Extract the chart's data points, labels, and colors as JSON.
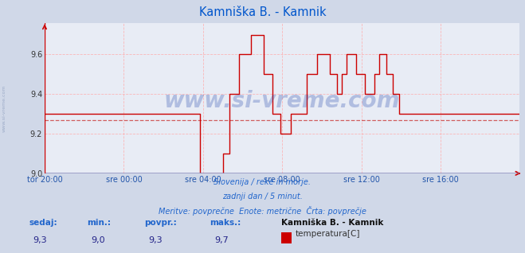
{
  "title": "Kamniška B. - Kamnik",
  "title_color": "#0055cc",
  "bg_color": "#d0d8e8",
  "plot_bg_color": "#e8ecf5",
  "grid_color": "#ffaaaa",
  "line_color": "#cc0000",
  "avg_line_color": "#cc4444",
  "avg_value": 9.27,
  "ylim": [
    9.0,
    9.76
  ],
  "yticks": [
    9.0,
    9.2,
    9.4,
    9.6
  ],
  "xlabel_color": "#2255aa",
  "watermark_text": "www.si-vreme.com",
  "watermark_color": "#2244aa",
  "watermark_alpha": 0.28,
  "footer_line1": "Slovenija / reke in morje.",
  "footer_line2": "zadnji dan / 5 minut.",
  "footer_line3": "Meritve: povprečne  Enote: metrične  Črta: povprečje",
  "footer_color": "#2266cc",
  "legend_title": "Kamniška B. - Kamnik",
  "legend_label": "temperatura[C]",
  "legend_color": "#cc0000",
  "stats_labels": [
    "sedaj:",
    "min.:",
    "povpr.:",
    "maks.:"
  ],
  "stats_values": [
    "9,3",
    "9,0",
    "9,3",
    "9,7"
  ],
  "stats_color": "#2266cc",
  "stats_value_color": "#222288",
  "xtick_labels": [
    "tor 20:00",
    "sre 00:00",
    "sre 04:00",
    "sre 08:00",
    "sre 12:00",
    "sre 16:00"
  ],
  "total_points": 289,
  "temperature_data": [
    9.3,
    9.3,
    9.3,
    9.3,
    9.3,
    9.3,
    9.3,
    9.3,
    9.3,
    9.3,
    9.3,
    9.3,
    9.3,
    9.3,
    9.3,
    9.3,
    9.3,
    9.3,
    9.3,
    9.3,
    9.3,
    9.3,
    9.3,
    9.3,
    9.3,
    9.3,
    9.3,
    9.3,
    9.3,
    9.3,
    9.3,
    9.3,
    9.3,
    9.3,
    9.3,
    9.3,
    9.3,
    9.3,
    9.3,
    9.3,
    9.3,
    9.3,
    9.3,
    9.3,
    9.3,
    9.3,
    9.3,
    9.3,
    9.3,
    9.3,
    9.3,
    9.3,
    9.3,
    9.3,
    9.3,
    9.3,
    9.3,
    9.3,
    9.3,
    9.3,
    9.3,
    9.3,
    9.3,
    9.3,
    9.3,
    9.3,
    9.3,
    9.3,
    9.3,
    9.3,
    9.3,
    9.3,
    9.3,
    9.3,
    9.3,
    9.3,
    9.3,
    9.3,
    9.3,
    9.3,
    9.3,
    9.3,
    9.3,
    9.3,
    9.3,
    9.3,
    9.3,
    9.3,
    9.3,
    9.3,
    9.3,
    9.3,
    9.3,
    9.3,
    9.0,
    9.0,
    9.0,
    9.0,
    9.0,
    9.0,
    9.0,
    9.0,
    9.0,
    9.0,
    9.0,
    9.0,
    9.0,
    9.0,
    9.1,
    9.1,
    9.1,
    9.1,
    9.4,
    9.4,
    9.4,
    9.4,
    9.4,
    9.4,
    9.6,
    9.6,
    9.6,
    9.6,
    9.6,
    9.6,
    9.6,
    9.7,
    9.7,
    9.7,
    9.7,
    9.7,
    9.7,
    9.7,
    9.7,
    9.5,
    9.5,
    9.5,
    9.5,
    9.5,
    9.3,
    9.3,
    9.3,
    9.3,
    9.3,
    9.2,
    9.2,
    9.2,
    9.2,
    9.2,
    9.2,
    9.3,
    9.3,
    9.3,
    9.3,
    9.3,
    9.3,
    9.3,
    9.3,
    9.3,
    9.3,
    9.5,
    9.5,
    9.5,
    9.5,
    9.5,
    9.5,
    9.6,
    9.6,
    9.6,
    9.6,
    9.6,
    9.6,
    9.6,
    9.6,
    9.5,
    9.5,
    9.5,
    9.5,
    9.4,
    9.4,
    9.4,
    9.5,
    9.5,
    9.5,
    9.6,
    9.6,
    9.6,
    9.6,
    9.6,
    9.6,
    9.5,
    9.5,
    9.5,
    9.5,
    9.5,
    9.4,
    9.4,
    9.4,
    9.4,
    9.4,
    9.4,
    9.5,
    9.5,
    9.5,
    9.6,
    9.6,
    9.6,
    9.6,
    9.5,
    9.5,
    9.5,
    9.5,
    9.4,
    9.4,
    9.4,
    9.4,
    9.3,
    9.3,
    9.3,
    9.3,
    9.3,
    9.3,
    9.3,
    9.3,
    9.3,
    9.3,
    9.3,
    9.3,
    9.3,
    9.3,
    9.3,
    9.3,
    9.3,
    9.3,
    9.3,
    9.3,
    9.3,
    9.3,
    9.3,
    9.3,
    9.3,
    9.3,
    9.3,
    9.3,
    9.3,
    9.3,
    9.3,
    9.3,
    9.3,
    9.3,
    9.3,
    9.3,
    9.3,
    9.3,
    9.3,
    9.3,
    9.3,
    9.3,
    9.3,
    9.3,
    9.3,
    9.3,
    9.3,
    9.3
  ]
}
